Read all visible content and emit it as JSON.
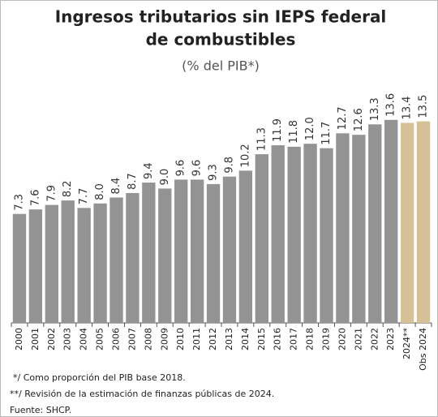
{
  "chart_data": {
    "type": "bar",
    "title": [
      "Ingresos tributarios sin IEPS federal",
      "de combustibles"
    ],
    "subtitle": "(% del PIB*)",
    "categories": [
      "2000",
      "2001",
      "2002",
      "2003",
      "2004",
      "2005",
      "2006",
      "2007",
      "2008",
      "2009",
      "2010",
      "2011",
      "2012",
      "2013",
      "2014",
      "2015",
      "2016",
      "2017",
      "2018",
      "2019",
      "2020",
      "2021",
      "2022",
      "2023",
      "2024**",
      "Obs 2024"
    ],
    "values": [
      7.3,
      7.6,
      7.9,
      8.2,
      7.7,
      8.0,
      8.4,
      8.7,
      9.4,
      9.0,
      9.6,
      9.6,
      9.3,
      9.8,
      10.2,
      11.3,
      11.9,
      11.8,
      12.0,
      11.7,
      12.7,
      12.6,
      13.3,
      13.6,
      13.4,
      13.5
    ],
    "value_labels": [
      "7.3",
      "7.6",
      "7.9",
      "8.2",
      "7.7",
      "8.0",
      "8.4",
      "8.7",
      "9.4",
      "9.0",
      "9.6",
      "9.6",
      "9.3",
      "9.8",
      "10.2",
      "11.3",
      "11.9",
      "11.8",
      "12.0",
      "11.7",
      "12.7",
      "12.6",
      "13.3",
      "13.6",
      "13.4",
      "13.5"
    ],
    "colors": [
      "#939393",
      "#939393",
      "#939393",
      "#939393",
      "#939393",
      "#939393",
      "#939393",
      "#939393",
      "#939393",
      "#939393",
      "#939393",
      "#939393",
      "#939393",
      "#939393",
      "#939393",
      "#939393",
      "#939393",
      "#939393",
      "#939393",
      "#939393",
      "#939393",
      "#939393",
      "#939393",
      "#939393",
      "#d6c197",
      "#d6c197"
    ],
    "ylim": [
      0,
      15
    ],
    "notes": [
      "*/ Como proporción  del PIB base 2018.",
      "**/ Revisión de la estimación de finanzas públicas de 2024.",
      "Fuente: SHCP."
    ]
  }
}
